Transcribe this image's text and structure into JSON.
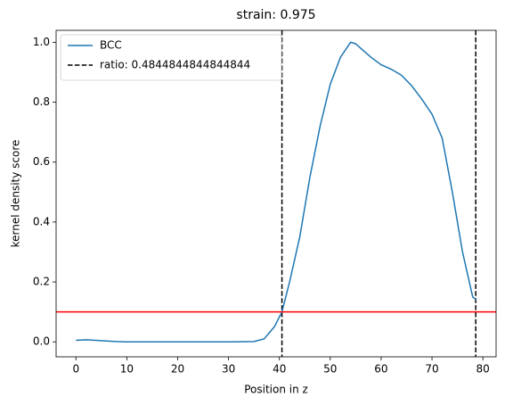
{
  "chart_data": {
    "type": "line",
    "title": "strain: 0.975",
    "xlabel": "Position in z",
    "ylabel": "kernel density score",
    "series": [
      {
        "name": "BCC",
        "color": "#1f77b4",
        "x": [
          0,
          2,
          5,
          8,
          10,
          15,
          20,
          25,
          30,
          35,
          37,
          39,
          40.5,
          42,
          44,
          46,
          48,
          50,
          52,
          54,
          55,
          56,
          58,
          60,
          62,
          64,
          66,
          68,
          70,
          72,
          74,
          76,
          78,
          78.7
        ],
        "values": [
          0.005,
          0.007,
          0.004,
          0.001,
          0,
          0,
          0,
          0,
          0,
          0.001,
          0.01,
          0.05,
          0.1,
          0.2,
          0.35,
          0.55,
          0.72,
          0.86,
          0.95,
          1.0,
          0.995,
          0.98,
          0.95,
          0.925,
          0.91,
          0.89,
          0.855,
          0.81,
          0.76,
          0.68,
          0.5,
          0.3,
          0.15,
          0.14
        ]
      }
    ],
    "reference_lines": {
      "name": "ratio: 0.4844844844844844",
      "x": [
        40.5,
        78.6
      ],
      "color": "#000000",
      "style": "dashed"
    },
    "threshold": {
      "y": 0.1,
      "color": "#ff0000"
    },
    "xlim": [
      -3.9,
      82.6
    ],
    "ylim": [
      -0.05,
      1.04
    ],
    "xticks": [
      0,
      10,
      20,
      30,
      40,
      50,
      60,
      70,
      80
    ],
    "yticks": [
      {
        "value": 0,
        "label": "0.0"
      },
      0.2,
      0.4,
      0.6,
      0.8,
      {
        "value": 1,
        "label": "1.0"
      }
    ],
    "legend": "upper left"
  }
}
